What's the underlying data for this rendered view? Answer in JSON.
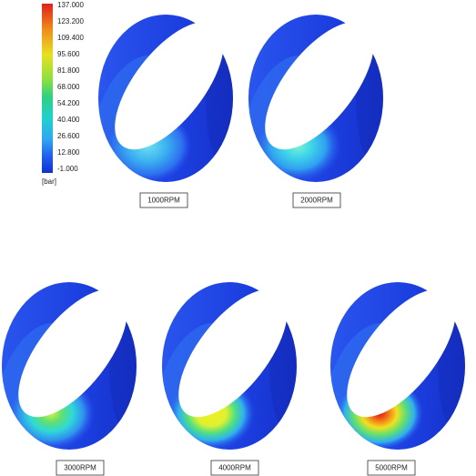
{
  "legend": {
    "ticks": [
      "137.000",
      "123.200",
      "109.400",
      "95.600",
      "81.800",
      "68.000",
      "54.200",
      "40.400",
      "26.600",
      "12.800",
      "-1.000"
    ],
    "unit": "[bar]"
  },
  "panels": [
    {
      "label": "1000RPM"
    },
    {
      "label": "2000RPM"
    },
    {
      "label": "3000RPM"
    },
    {
      "label": "4000RPM"
    },
    {
      "label": "5000RPM"
    }
  ]
}
